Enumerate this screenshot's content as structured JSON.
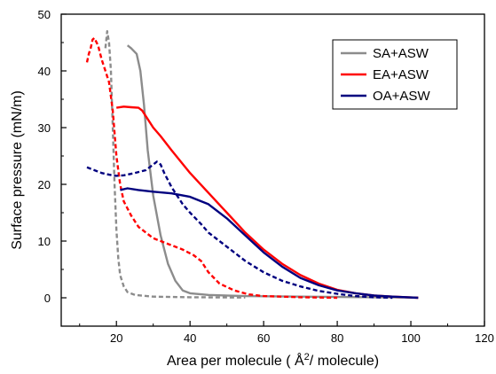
{
  "chart_data": {
    "type": "line",
    "xlabel": "Area per molecule ( Å",
    "xlabel_sup": "2",
    "xlabel_tail": "/ molecule)",
    "ylabel": "Surface pressure (mN/m)",
    "xlim": [
      5,
      120
    ],
    "ylim": [
      -5,
      50
    ],
    "x_ticks": [
      20,
      40,
      60,
      80,
      100,
      120
    ],
    "y_ticks": [
      0,
      10,
      20,
      30,
      40,
      50
    ],
    "grid": false,
    "legend_position": "top-right",
    "legend": [
      {
        "label": "SA+ASW",
        "color": "#8c8c8c"
      },
      {
        "label": "EA+ASW",
        "color": "#ff0000"
      },
      {
        "label": "OA+ASW",
        "color": "#00007f"
      }
    ],
    "series": [
      {
        "name": "SA+ASW",
        "color": "#8c8c8c",
        "dash": "solid",
        "points": [
          [
            23,
            44.5
          ],
          [
            24,
            44
          ],
          [
            25.5,
            43
          ],
          [
            26.5,
            40
          ],
          [
            27.5,
            34
          ],
          [
            28.5,
            26
          ],
          [
            30,
            18
          ],
          [
            32,
            11
          ],
          [
            34,
            6
          ],
          [
            36,
            3
          ],
          [
            38,
            1.3
          ],
          [
            40,
            0.8
          ],
          [
            45,
            0.5
          ],
          [
            55,
            0.3
          ],
          [
            70,
            0.2
          ],
          [
            90,
            0.1
          ],
          [
            102,
            0.05
          ]
        ]
      },
      {
        "name": "SA+ASW",
        "color": "#8c8c8c",
        "dash": "dashed",
        "points": [
          [
            17,
            44
          ],
          [
            17.5,
            47
          ],
          [
            18,
            45
          ],
          [
            18.5,
            40
          ],
          [
            19,
            30
          ],
          [
            19.5,
            20
          ],
          [
            20,
            12
          ],
          [
            20.5,
            7
          ],
          [
            21,
            4
          ],
          [
            22,
            2
          ],
          [
            23,
            1
          ],
          [
            25,
            0.5
          ],
          [
            30,
            0.2
          ],
          [
            40,
            0.1
          ],
          [
            55,
            0.05
          ]
        ]
      },
      {
        "name": "EA+ASW",
        "color": "#ff0000",
        "dash": "solid",
        "points": [
          [
            20,
            33.5
          ],
          [
            22,
            33.7
          ],
          [
            24,
            33.6
          ],
          [
            26,
            33.5
          ],
          [
            27,
            33
          ],
          [
            28,
            32
          ],
          [
            30,
            30
          ],
          [
            32,
            28.5
          ],
          [
            35,
            26
          ],
          [
            40,
            22
          ],
          [
            45,
            18.5
          ],
          [
            50,
            15
          ],
          [
            55,
            11.5
          ],
          [
            60,
            8.5
          ],
          [
            65,
            6
          ],
          [
            70,
            4
          ],
          [
            75,
            2.5
          ],
          [
            80,
            1.4
          ],
          [
            85,
            0.8
          ],
          [
            90,
            0.4
          ],
          [
            95,
            0.2
          ],
          [
            102,
            0
          ]
        ]
      },
      {
        "name": "EA+ASW",
        "color": "#ff0000",
        "dash": "dashed",
        "points": [
          [
            12,
            41.5
          ],
          [
            12.5,
            43
          ],
          [
            13,
            44
          ],
          [
            13.5,
            45.5
          ],
          [
            14,
            45.8
          ],
          [
            15,
            44.5
          ],
          [
            16,
            42
          ],
          [
            17,
            40
          ],
          [
            18,
            38
          ],
          [
            19,
            33
          ],
          [
            20,
            25
          ],
          [
            21,
            20
          ],
          [
            22,
            17
          ],
          [
            24,
            14.5
          ],
          [
            26,
            12.5
          ],
          [
            30,
            10.5
          ],
          [
            34,
            9.5
          ],
          [
            38,
            8.5
          ],
          [
            41,
            7.5
          ],
          [
            43,
            6.5
          ],
          [
            45,
            4.5
          ],
          [
            48,
            2.5
          ],
          [
            52,
            1.3
          ],
          [
            56,
            0.6
          ],
          [
            60,
            0.3
          ],
          [
            70,
            0.1
          ],
          [
            80,
            0
          ]
        ]
      },
      {
        "name": "OA+ASW",
        "color": "#00007f",
        "dash": "solid",
        "points": [
          [
            21,
            19
          ],
          [
            23,
            19.3
          ],
          [
            26,
            19
          ],
          [
            30,
            18.7
          ],
          [
            35,
            18.4
          ],
          [
            40,
            17.8
          ],
          [
            45,
            16.5
          ],
          [
            50,
            14
          ],
          [
            55,
            11
          ],
          [
            60,
            8
          ],
          [
            65,
            5.5
          ],
          [
            70,
            3.5
          ],
          [
            75,
            2.2
          ],
          [
            80,
            1.3
          ],
          [
            85,
            0.8
          ],
          [
            90,
            0.4
          ],
          [
            95,
            0.2
          ],
          [
            102,
            0
          ]
        ]
      },
      {
        "name": "OA+ASW",
        "color": "#00007f",
        "dash": "dashed",
        "points": [
          [
            12,
            23
          ],
          [
            14,
            22.5
          ],
          [
            16,
            22
          ],
          [
            18,
            21.7
          ],
          [
            20,
            21.5
          ],
          [
            22,
            21.6
          ],
          [
            25,
            22
          ],
          [
            28,
            22.5
          ],
          [
            30,
            23.5
          ],
          [
            31,
            24
          ],
          [
            32,
            23.5
          ],
          [
            33,
            22
          ],
          [
            35,
            19.5
          ],
          [
            38,
            16.5
          ],
          [
            40,
            15
          ],
          [
            43,
            13
          ],
          [
            45,
            11.5
          ],
          [
            50,
            9
          ],
          [
            55,
            6.5
          ],
          [
            60,
            4.5
          ],
          [
            65,
            3
          ],
          [
            70,
            2
          ],
          [
            75,
            1.2
          ],
          [
            80,
            0.7
          ],
          [
            85,
            0.3
          ],
          [
            90,
            0.1
          ],
          [
            95,
            0
          ]
        ]
      }
    ]
  }
}
